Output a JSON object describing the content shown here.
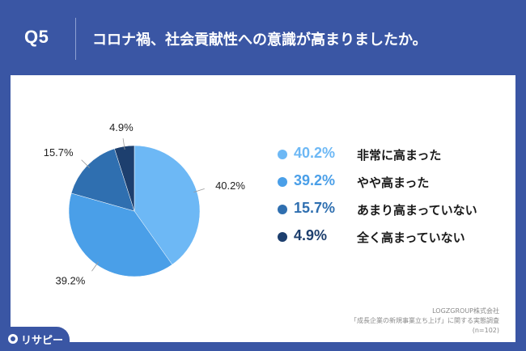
{
  "header": {
    "question_number": "Q5",
    "question_text": "コロナ禍、社会貢献性への意識が高まりましたか。"
  },
  "chart_data": {
    "type": "pie",
    "title": "",
    "start_angle_deg": 0,
    "direction": "clockwise",
    "slices": [
      {
        "label": "非常に高まった",
        "value": 40.2,
        "display": "40.2%",
        "color": "#6db8f5"
      },
      {
        "label": "やや高まった",
        "value": 39.2,
        "display": "39.2%",
        "color": "#4a9fe8"
      },
      {
        "label": "あまり高まっていない",
        "value": 15.7,
        "display": "15.7%",
        "color": "#2f6fb0"
      },
      {
        "label": "全く高まっていない",
        "value": 4.9,
        "display": "4.9%",
        "color": "#1d3f6e"
      }
    ],
    "legend_position": "right"
  },
  "footer": {
    "source_line1": "LOGZGROUP株式会社",
    "source_line2": "「成長企業の新規事業立ち上げ」に関する実態調査",
    "source_line3": "(n=102)",
    "logo_text": "リサピー"
  },
  "colors": {
    "background": "#3a56a4",
    "card": "#ffffff"
  }
}
